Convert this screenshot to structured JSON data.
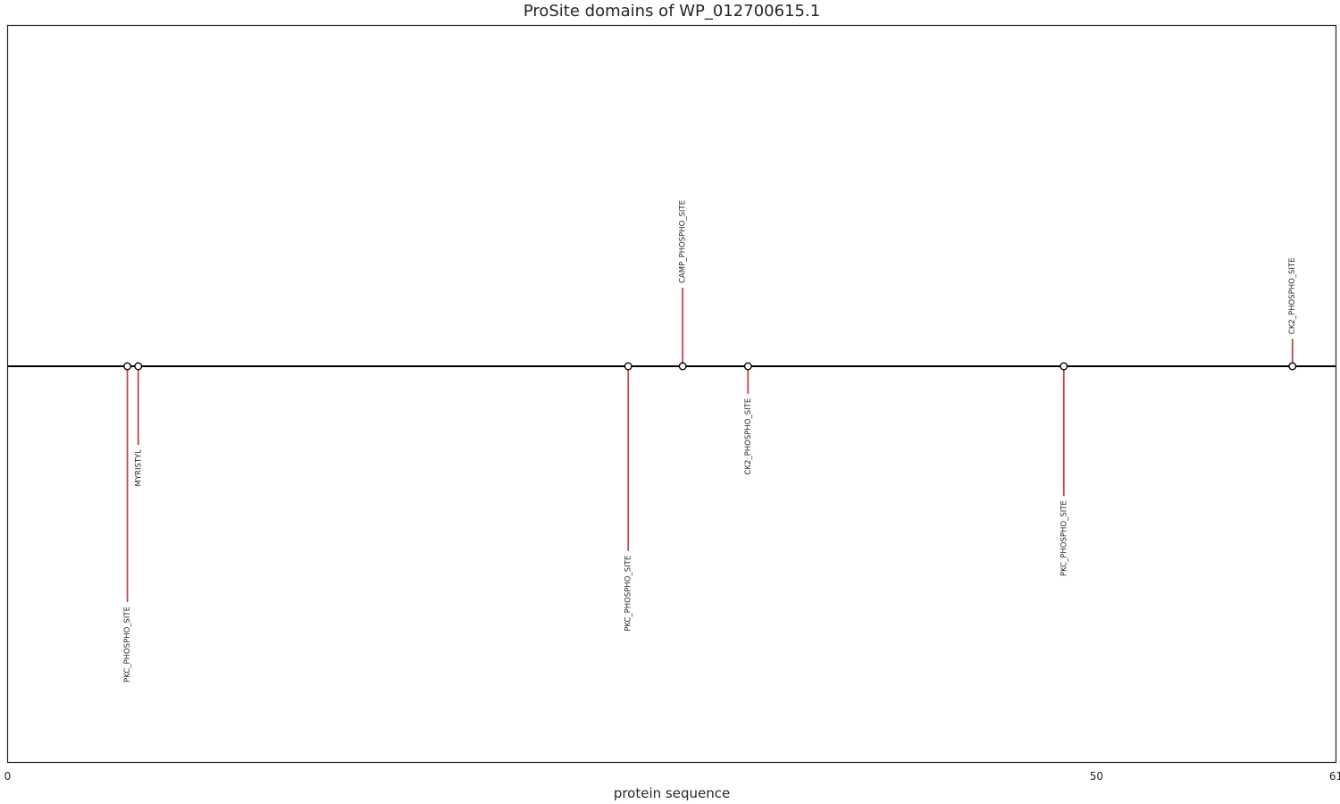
{
  "chart_data": {
    "type": "lollipop",
    "title": "ProSite domains of WP_012700615.1",
    "xlabel": "protein sequence",
    "ylabel": "",
    "xlim": [
      0,
      61
    ],
    "ylim": [
      -1,
      1
    ],
    "xticks": [
      0,
      50,
      61
    ],
    "grid": false,
    "colors": {
      "stem": "#c0444e",
      "baseline": "#000000",
      "marker_fill": "#ffffff",
      "marker_edge": "#000000",
      "frame": "#262626"
    },
    "sites": [
      {
        "name": "PKC_PHOSPHO_SITE",
        "x": 5.5,
        "y": -0.6
      },
      {
        "name": "MYRISTYL",
        "x": 6.0,
        "y": -0.2
      },
      {
        "name": "PKC_PHOSPHO_SITE",
        "x": 28.5,
        "y": -0.47
      },
      {
        "name": "CAMP_PHOSPHO_SITE",
        "x": 31.0,
        "y": 0.2
      },
      {
        "name": "CK2_PHOSPHO_SITE",
        "x": 34.0,
        "y": -0.07
      },
      {
        "name": "PKC_PHOSPHO_SITE",
        "x": 48.5,
        "y": -0.33
      },
      {
        "name": "CK2_PHOSPHO_SITE",
        "x": 59.0,
        "y": 0.07
      }
    ]
  }
}
